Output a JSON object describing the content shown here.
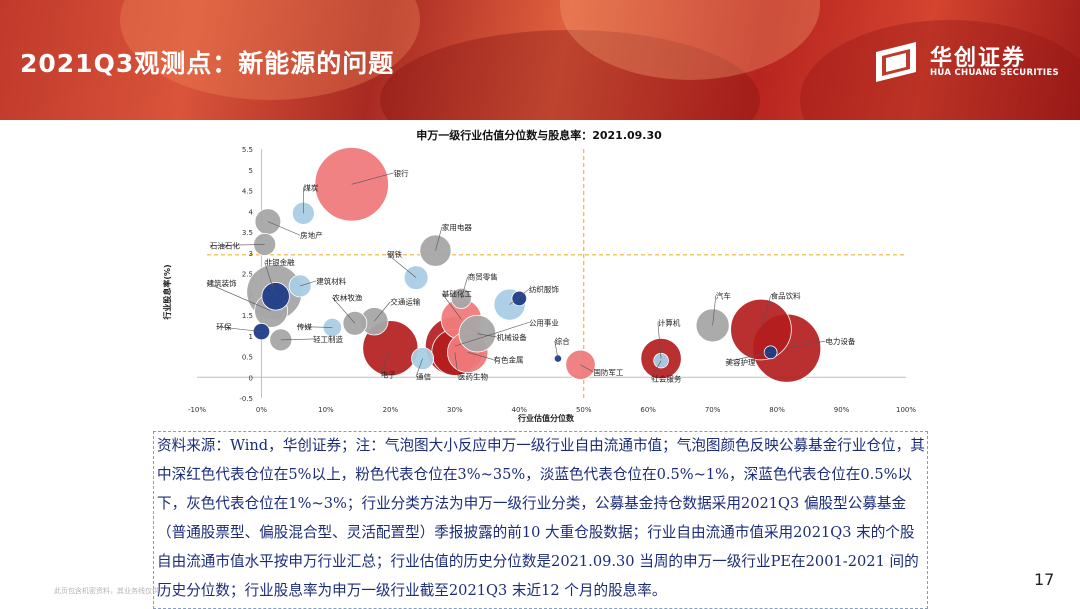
{
  "header": {
    "title": "2021Q3观测点：新能源的问题",
    "logo_text": "华创证券",
    "logo_sub": "HUA CHUANG SECURITIES"
  },
  "chart_data": {
    "type": "scatter",
    "title": "申万一级行业估值分位数与股息率：2021.09.30",
    "xlabel": "行业估值分位数",
    "ylabel": "行业股息率(%)",
    "xlim": [
      -10,
      100
    ],
    "ylim": [
      -0.5,
      5.5
    ],
    "x_ticks": [
      "-10%",
      "0%",
      "10%",
      "20%",
      "30%",
      "40%",
      "50%",
      "60%",
      "70%",
      "80%",
      "90%",
      "100%"
    ],
    "y_ticks": [
      "-0.5",
      "0",
      "0.5",
      "1",
      "1.5",
      "2",
      "2.5",
      "3",
      "3.5",
      "4",
      "4.5",
      "5",
      "5.5"
    ],
    "reference_lines": {
      "x": 50,
      "y": 2.95
    },
    "colors": {
      "dark_red": "#b41d1d",
      "pink": "#f07b7c",
      "light_blue": "#a9cde6",
      "dark_blue": "#1f3c88",
      "gray": "#a6a6a6"
    },
    "points": [
      {
        "label": "银行",
        "x": 14,
        "y": 4.65,
        "size": 40,
        "color": "pink"
      },
      {
        "label": "煤炭",
        "x": 6.5,
        "y": 3.95,
        "size": 12,
        "color": "light_blue"
      },
      {
        "label": "房地产",
        "x": 1,
        "y": 3.75,
        "size": 14,
        "color": "gray"
      },
      {
        "label": "石油石化",
        "x": 0.5,
        "y": 3.2,
        "size": 12,
        "color": "gray"
      },
      {
        "label": "家用电器",
        "x": 27,
        "y": 3.05,
        "size": 17,
        "color": "gray"
      },
      {
        "label": "钢铁",
        "x": 24,
        "y": 2.4,
        "size": 13,
        "color": "light_blue"
      },
      {
        "label": "非银金融",
        "x": 2,
        "y": 2.05,
        "size": 30,
        "color": "gray"
      },
      {
        "label": "非银金融",
        "x": 2.2,
        "y": 1.95,
        "size": 15,
        "color": "dark_blue"
      },
      {
        "label": "建筑材料",
        "x": 6,
        "y": 2.2,
        "size": 12,
        "color": "light_blue"
      },
      {
        "label": "建筑装饰",
        "x": 1.5,
        "y": 1.6,
        "size": 18,
        "color": "gray"
      },
      {
        "label": "商贸零售",
        "x": 31,
        "y": 1.9,
        "size": 11,
        "color": "gray"
      },
      {
        "label": "纺织服饰",
        "x": 38.5,
        "y": 1.75,
        "size": 17,
        "color": "light_blue"
      },
      {
        "label": "纺织服饰",
        "x": 40,
        "y": 1.9,
        "size": 8,
        "color": "dark_blue"
      },
      {
        "label": "基础化工",
        "x": 31,
        "y": 1.4,
        "size": 22,
        "color": "pink"
      },
      {
        "label": "农林牧渔",
        "x": 14.5,
        "y": 1.3,
        "size": 13,
        "color": "gray"
      },
      {
        "label": "交通运输",
        "x": 17.5,
        "y": 1.35,
        "size": 15,
        "color": "gray"
      },
      {
        "label": "传媒",
        "x": 11,
        "y": 1.2,
        "size": 10,
        "color": "light_blue"
      },
      {
        "label": "环保",
        "x": 0,
        "y": 1.1,
        "size": 9,
        "color": "dark_blue"
      },
      {
        "label": "轻工制造",
        "x": 3,
        "y": 0.9,
        "size": 12,
        "color": "gray"
      },
      {
        "label": "机械设备",
        "x": 33.5,
        "y": 1.05,
        "size": 20,
        "color": "gray"
      },
      {
        "label": "公用事业",
        "x": 30,
        "y": 0.75,
        "size": 32,
        "color": "dark_red"
      },
      {
        "label": "有色金属",
        "x": 32,
        "y": 0.6,
        "size": 22,
        "color": "pink"
      },
      {
        "label": "电子",
        "x": 20,
        "y": 0.7,
        "size": 30,
        "color": "dark_red"
      },
      {
        "label": "通信",
        "x": 25,
        "y": 0.45,
        "size": 12,
        "color": "light_blue"
      },
      {
        "label": "医药生物",
        "x": 30,
        "y": 0.6,
        "size": 25,
        "color": "dark_red"
      },
      {
        "label": "综合",
        "x": 46,
        "y": 0.45,
        "size": 4,
        "color": "dark_blue"
      },
      {
        "label": "国防军工",
        "x": 49.5,
        "y": 0.3,
        "size": 16,
        "color": "pink"
      },
      {
        "label": "计算机",
        "x": 62,
        "y": 0.45,
        "size": 22,
        "color": "dark_red"
      },
      {
        "label": "社会服务",
        "x": 62,
        "y": 0.4,
        "size": 8,
        "color": "light_blue"
      },
      {
        "label": "汽车",
        "x": 70,
        "y": 1.25,
        "size": 18,
        "color": "gray"
      },
      {
        "label": "食品饮料",
        "x": 77.5,
        "y": 1.15,
        "size": 33,
        "color": "dark_red"
      },
      {
        "label": "电力设备",
        "x": 81.5,
        "y": 0.7,
        "size": 37,
        "color": "dark_red"
      },
      {
        "label": "美容护理",
        "x": 79,
        "y": 0.6,
        "size": 7,
        "color": "dark_blue"
      }
    ],
    "labels": [
      {
        "text": "银行",
        "x": 20.5,
        "y": 4.85
      },
      {
        "text": "煤炭",
        "x": 6.5,
        "y": 4.5
      },
      {
        "text": "房地产",
        "x": 6,
        "y": 3.35
      },
      {
        "text": "石油石化",
        "x": -8,
        "y": 3.1
      },
      {
        "text": "家用电器",
        "x": 28,
        "y": 3.55
      },
      {
        "text": "钢铁",
        "x": 19.5,
        "y": 2.9
      },
      {
        "text": "非银金融",
        "x": 0.5,
        "y": 2.7
      },
      {
        "text": "建筑材料",
        "x": 8.5,
        "y": 2.25
      },
      {
        "text": "建筑装饰",
        "x": -8.5,
        "y": 2.2
      },
      {
        "text": "商贸零售",
        "x": 32,
        "y": 2.35
      },
      {
        "text": "纺织服饰",
        "x": 41.5,
        "y": 2.05
      },
      {
        "text": "基础化工",
        "x": 28,
        "y": 1.95
      },
      {
        "text": "农林牧渔",
        "x": 11,
        "y": 1.85
      },
      {
        "text": "交通运输",
        "x": 20,
        "y": 1.75
      },
      {
        "text": "公用事业",
        "x": 41.5,
        "y": 1.25
      },
      {
        "text": "环保",
        "x": -7,
        "y": 1.15
      },
      {
        "text": "传媒",
        "x": 5.5,
        "y": 1.15
      },
      {
        "text": "轻工制造",
        "x": 8,
        "y": 0.85
      },
      {
        "text": "机械设备",
        "x": 36.5,
        "y": 0.9
      },
      {
        "text": "有色金属",
        "x": 36,
        "y": 0.35
      },
      {
        "text": "电子",
        "x": 18.5,
        "y": 0.0
      },
      {
        "text": "通信",
        "x": 24,
        "y": -0.05
      },
      {
        "text": "医药生物",
        "x": 30.5,
        "y": -0.05
      },
      {
        "text": "综合",
        "x": 45.5,
        "y": 0.8
      },
      {
        "text": "国防军工",
        "x": 51.5,
        "y": 0.05
      },
      {
        "text": "计算机",
        "x": 61.5,
        "y": 1.25
      },
      {
        "text": "社会服务",
        "x": 60.5,
        "y": -0.1
      },
      {
        "text": "汽车",
        "x": 70.5,
        "y": 1.9
      },
      {
        "text": "食品饮料",
        "x": 79,
        "y": 1.9
      },
      {
        "text": "美容护理",
        "x": 72,
        "y": 0.3
      },
      {
        "text": "电力设备",
        "x": 87.5,
        "y": 0.8
      }
    ]
  },
  "notes": {
    "source": "资料来源：Wind，华创证券；注：气泡图大小反应申万一级行业自由流通市值；气泡图颜色反映公募基金行业仓位，其中深红色代表仓位在5%以上，粉色代表仓位在3%~35%，淡蓝色代表仓位在0.5%~1%，深蓝色代表仓位在0.5%以下，灰色代表仓位在1%~3%；行业分类方法为申万一级行业分类，公募基金持仓数据采用2021Q3 偏股型公募基金（普通股票型、偏股混合型、灵活配置型）季报披露的前10 大重仓股数据；行业自由流通市值采用2021Q3 末的个股自由流通市值水平按申万行业汇总；行业估值的历史分位数是2021.09.30 当周的申万一级行业PE在2001-2021 间的历史分位数；行业股息率为申万一级行业截至2021Q3 末近12 个月的股息率。"
  },
  "footer": {
    "disclaimer": "此页包含机密资料，其业务线仅供",
    "page_number": "17"
  }
}
